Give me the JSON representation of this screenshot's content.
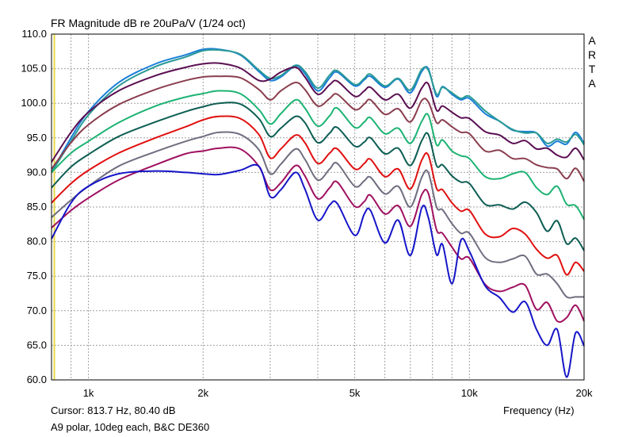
{
  "header": {
    "title": "FR Magnitude dB re 20uPa/V (1/24 oct)",
    "side_label": [
      "A",
      "R",
      "T",
      "A"
    ]
  },
  "footer": {
    "cursor": "Cursor: 813.7 Hz, 80.40 dB",
    "note": "A9 polar, 10deg each, B&C DE360"
  },
  "chart_data": {
    "type": "line",
    "title": "FR Magnitude dB re 20uPa/V (1/24 oct)",
    "xlabel": "Frequency (Hz)",
    "ylabel": "",
    "xscale": "log",
    "xlim": [
      800,
      20000
    ],
    "ylim": [
      60,
      110
    ],
    "grid": true,
    "legend": "none",
    "y_ticks": [
      "110.0",
      "105.0",
      "100.0",
      "95.0",
      "90.0",
      "85.0",
      "80.0",
      "75.0",
      "70.0",
      "65.0",
      "60.0"
    ],
    "x_ticks": [
      {
        "value": 1000,
        "label": "1k"
      },
      {
        "value": 2000,
        "label": "2k"
      },
      {
        "value": 5000,
        "label": "5k"
      },
      {
        "value": 10000,
        "label": "10k"
      },
      {
        "value": 20000,
        "label": "20k"
      }
    ],
    "cursor_marker": {
      "x": 813.7,
      "color": "#e8d84a"
    },
    "x": [
      800,
      900,
      1000,
      1200,
      1500,
      1800,
      2000,
      2200,
      2500,
      2800,
      3000,
      3200,
      3500,
      3700,
      4000,
      4300,
      4500,
      5000,
      5300,
      5500,
      6000,
      6500,
      7000,
      7500,
      7800,
      8200,
      8500,
      9000,
      9500,
      10000,
      11000,
      12000,
      13000,
      14000,
      15000,
      16000,
      17000,
      18000,
      19000,
      20000
    ],
    "series": [
      {
        "color": "#1a7fd8",
        "values": [
          90.0,
          95.0,
          98.8,
          103.0,
          105.7,
          107.0,
          107.8,
          107.8,
          107.0,
          104.6,
          103.3,
          103.8,
          105.4,
          104.3,
          101.8,
          103.7,
          104.5,
          102.5,
          103.4,
          103.9,
          102.3,
          103.5,
          101.5,
          104.6,
          105.0,
          101.0,
          102.4,
          101.3,
          100.5,
          100.7,
          98.5,
          97.4,
          96.1,
          95.9,
          95.7,
          93.8,
          94.5,
          94.1,
          95.8,
          94.2
        ]
      },
      {
        "color": "#2a9a96",
        "values": [
          90.0,
          94.5,
          98.3,
          102.5,
          105.3,
          106.7,
          107.6,
          107.7,
          107.1,
          104.8,
          103.6,
          104.0,
          105.5,
          104.6,
          102.2,
          104.1,
          104.7,
          102.7,
          103.6,
          104.2,
          102.5,
          103.6,
          101.9,
          104.9,
          104.8,
          101.3,
          102.3,
          101.5,
          100.7,
          101.0,
          98.9,
          97.4,
          96.2,
          95.7,
          95.7,
          94.2,
          94.8,
          94.4,
          95.5,
          94.0
        ]
      },
      {
        "color": "#5a0f52",
        "values": [
          91.5,
          95.8,
          98.7,
          101.8,
          104.0,
          105.2,
          105.7,
          105.8,
          105.1,
          103.3,
          103.5,
          104.5,
          105.2,
          103.8,
          101.3,
          102.7,
          103.2,
          101.0,
          101.8,
          102.3,
          100.5,
          101.3,
          99.3,
          102.2,
          102.8,
          99.0,
          99.6,
          98.7,
          97.9,
          97.8,
          95.9,
          95.4,
          94.2,
          94.6,
          93.4,
          93.5,
          92.5,
          92.2,
          93.5,
          91.8
        ]
      },
      {
        "color": "#8a3e4e",
        "values": [
          90.5,
          94.3,
          96.9,
          99.8,
          102.0,
          103.3,
          103.8,
          103.9,
          103.7,
          102.0,
          100.5,
          101.8,
          103.0,
          102.0,
          99.6,
          100.7,
          101.3,
          99.1,
          99.9,
          100.5,
          98.4,
          99.2,
          97.3,
          100.4,
          100.2,
          97.2,
          97.6,
          96.6,
          95.8,
          95.6,
          93.1,
          93.2,
          92.0,
          92.0,
          91.1,
          90.7,
          90.5,
          89.1,
          90.6,
          88.7
        ]
      },
      {
        "color": "#1db374",
        "values": [
          90.0,
          92.8,
          94.5,
          97.2,
          99.6,
          100.9,
          101.4,
          101.8,
          101.4,
          99.1,
          97.0,
          98.5,
          100.5,
          99.3,
          96.7,
          98.2,
          99.3,
          96.5,
          97.3,
          97.9,
          95.6,
          96.4,
          94.2,
          97.4,
          98.3,
          94.0,
          94.7,
          93.1,
          92.4,
          92.0,
          89.4,
          89.1,
          89.8,
          90.0,
          87.8,
          86.8,
          88.0,
          85.4,
          85.2,
          83.2
        ]
      },
      {
        "color": "#0d5e54",
        "values": [
          87.8,
          90.8,
          92.6,
          95.2,
          97.3,
          98.8,
          99.5,
          100.0,
          99.9,
          97.8,
          95.2,
          96.4,
          98.1,
          97.2,
          94.3,
          95.7,
          96.5,
          93.8,
          94.4,
          95.0,
          92.7,
          93.5,
          91.0,
          94.6,
          95.5,
          91.0,
          91.1,
          89.5,
          88.6,
          88.4,
          85.4,
          85.3,
          84.7,
          85.7,
          84.2,
          81.5,
          83.0,
          79.7,
          80.5,
          78.7
        ]
      },
      {
        "color": "#e01010",
        "values": [
          85.6,
          88.4,
          90.3,
          92.8,
          95.0,
          96.6,
          97.6,
          98.1,
          97.8,
          95.5,
          92.1,
          93.4,
          95.4,
          94.3,
          91.3,
          92.8,
          93.4,
          90.5,
          91.3,
          91.9,
          89.4,
          90.5,
          87.6,
          91.8,
          92.5,
          87.7,
          87.5,
          85.6,
          84.4,
          84.5,
          81.1,
          80.7,
          81.9,
          81.1,
          78.9,
          77.6,
          78.0,
          75.2,
          77.0,
          75.7
        ]
      },
      {
        "color": "#6e6e80",
        "values": [
          83.5,
          86.0,
          88.0,
          90.9,
          93.0,
          94.5,
          95.2,
          95.8,
          95.5,
          93.3,
          89.8,
          91.2,
          93.4,
          91.9,
          88.9,
          90.5,
          91.3,
          88.0,
          88.8,
          89.3,
          86.9,
          88.0,
          85.0,
          89.3,
          90.0,
          85.0,
          84.6,
          82.6,
          81.2,
          81.2,
          77.7,
          77.0,
          77.5,
          77.9,
          75.3,
          75.3,
          73.9,
          72.0,
          72.0,
          72.0
        ]
      },
      {
        "color": "#a01060",
        "values": [
          82.0,
          84.5,
          86.3,
          88.9,
          91.1,
          92.7,
          93.1,
          93.5,
          93.4,
          90.9,
          87.5,
          88.5,
          91.0,
          89.5,
          86.2,
          87.8,
          88.6,
          85.1,
          85.8,
          86.7,
          84.0,
          85.2,
          82.2,
          86.8,
          87.0,
          81.7,
          81.2,
          79.2,
          77.5,
          77.6,
          73.8,
          72.8,
          73.4,
          73.7,
          70.2,
          71.2,
          68.5,
          69.0,
          70.8,
          68.5
        ]
      },
      {
        "color": "#1515c8",
        "values": [
          80.4,
          85.6,
          88.0,
          89.8,
          90.2,
          90.0,
          89.8,
          89.7,
          90.3,
          90.9,
          86.5,
          87.5,
          90.0,
          87.6,
          83.1,
          85.3,
          85.5,
          80.9,
          84.0,
          84.5,
          79.8,
          83.1,
          78.0,
          84.9,
          83.5,
          78.1,
          79.6,
          73.9,
          80.2,
          78.6,
          73.6,
          71.9,
          69.8,
          71.3,
          67.3,
          65.0,
          67.3,
          60.4,
          66.8,
          64.9
        ]
      }
    ]
  }
}
